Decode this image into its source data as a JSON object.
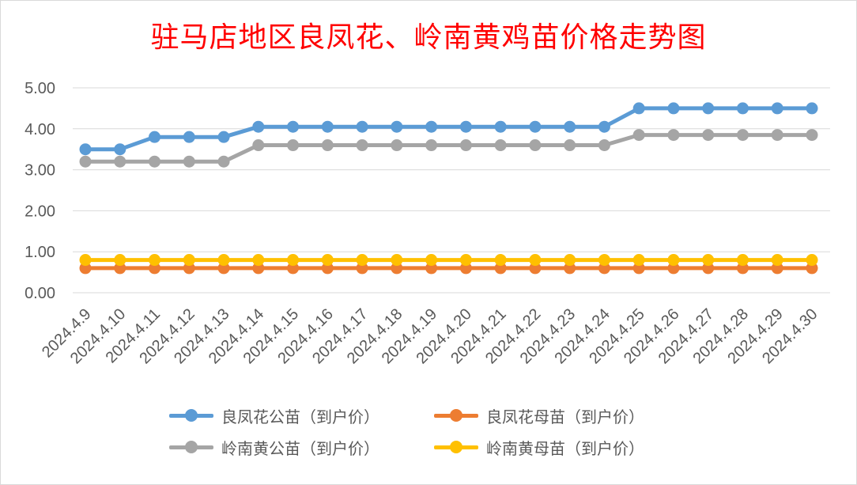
{
  "chart_data": {
    "type": "line",
    "title": "驻马店地区良凤花、岭南黄鸡苗价格走势图",
    "xlabel": "",
    "ylabel": "",
    "ylim": [
      0,
      5
    ],
    "yticks": [
      "0.00",
      "1.00",
      "2.00",
      "3.00",
      "4.00",
      "5.00"
    ],
    "grid": "horizontal",
    "legend_position": "bottom",
    "categories": [
      "2024.4.9",
      "2024.4.10",
      "2024.4.11",
      "2024.4.12",
      "2024.4.13",
      "2024.4.14",
      "2024.4.15",
      "2024.4.16",
      "2024.4.17",
      "2024.4.18",
      "2024.4.19",
      "2024.4.20",
      "2024.4.21",
      "2024.4.22",
      "2024.4.23",
      "2024.4.24",
      "2024.4.25",
      "2024.4.26",
      "2024.4.27",
      "2024.4.28",
      "2024.4.29",
      "2024.4.30"
    ],
    "series": [
      {
        "name": "良凤花公苗（到户价）",
        "color": "#5b9bd5",
        "values": [
          3.5,
          3.5,
          3.8,
          3.8,
          3.8,
          4.05,
          4.05,
          4.05,
          4.05,
          4.05,
          4.05,
          4.05,
          4.05,
          4.05,
          4.05,
          4.05,
          4.5,
          4.5,
          4.5,
          4.5,
          4.5,
          4.5
        ]
      },
      {
        "name": "良凤花母苗（到户价）",
        "color": "#ed7d31",
        "values": [
          0.6,
          0.6,
          0.6,
          0.6,
          0.6,
          0.6,
          0.6,
          0.6,
          0.6,
          0.6,
          0.6,
          0.6,
          0.6,
          0.6,
          0.6,
          0.6,
          0.6,
          0.6,
          0.6,
          0.6,
          0.6,
          0.6
        ]
      },
      {
        "name": "岭南黄公苗（到户价）",
        "color": "#a5a5a5",
        "values": [
          3.2,
          3.2,
          3.2,
          3.2,
          3.2,
          3.6,
          3.6,
          3.6,
          3.6,
          3.6,
          3.6,
          3.6,
          3.6,
          3.6,
          3.6,
          3.6,
          3.85,
          3.85,
          3.85,
          3.85,
          3.85,
          3.85
        ]
      },
      {
        "name": "岭南黄母苗（到户价）",
        "color": "#ffc000",
        "values": [
          0.8,
          0.8,
          0.8,
          0.8,
          0.8,
          0.8,
          0.8,
          0.8,
          0.8,
          0.8,
          0.8,
          0.8,
          0.8,
          0.8,
          0.8,
          0.8,
          0.8,
          0.8,
          0.8,
          0.8,
          0.8,
          0.8
        ]
      }
    ],
    "legend_order": [
      0,
      1,
      2,
      3
    ]
  }
}
